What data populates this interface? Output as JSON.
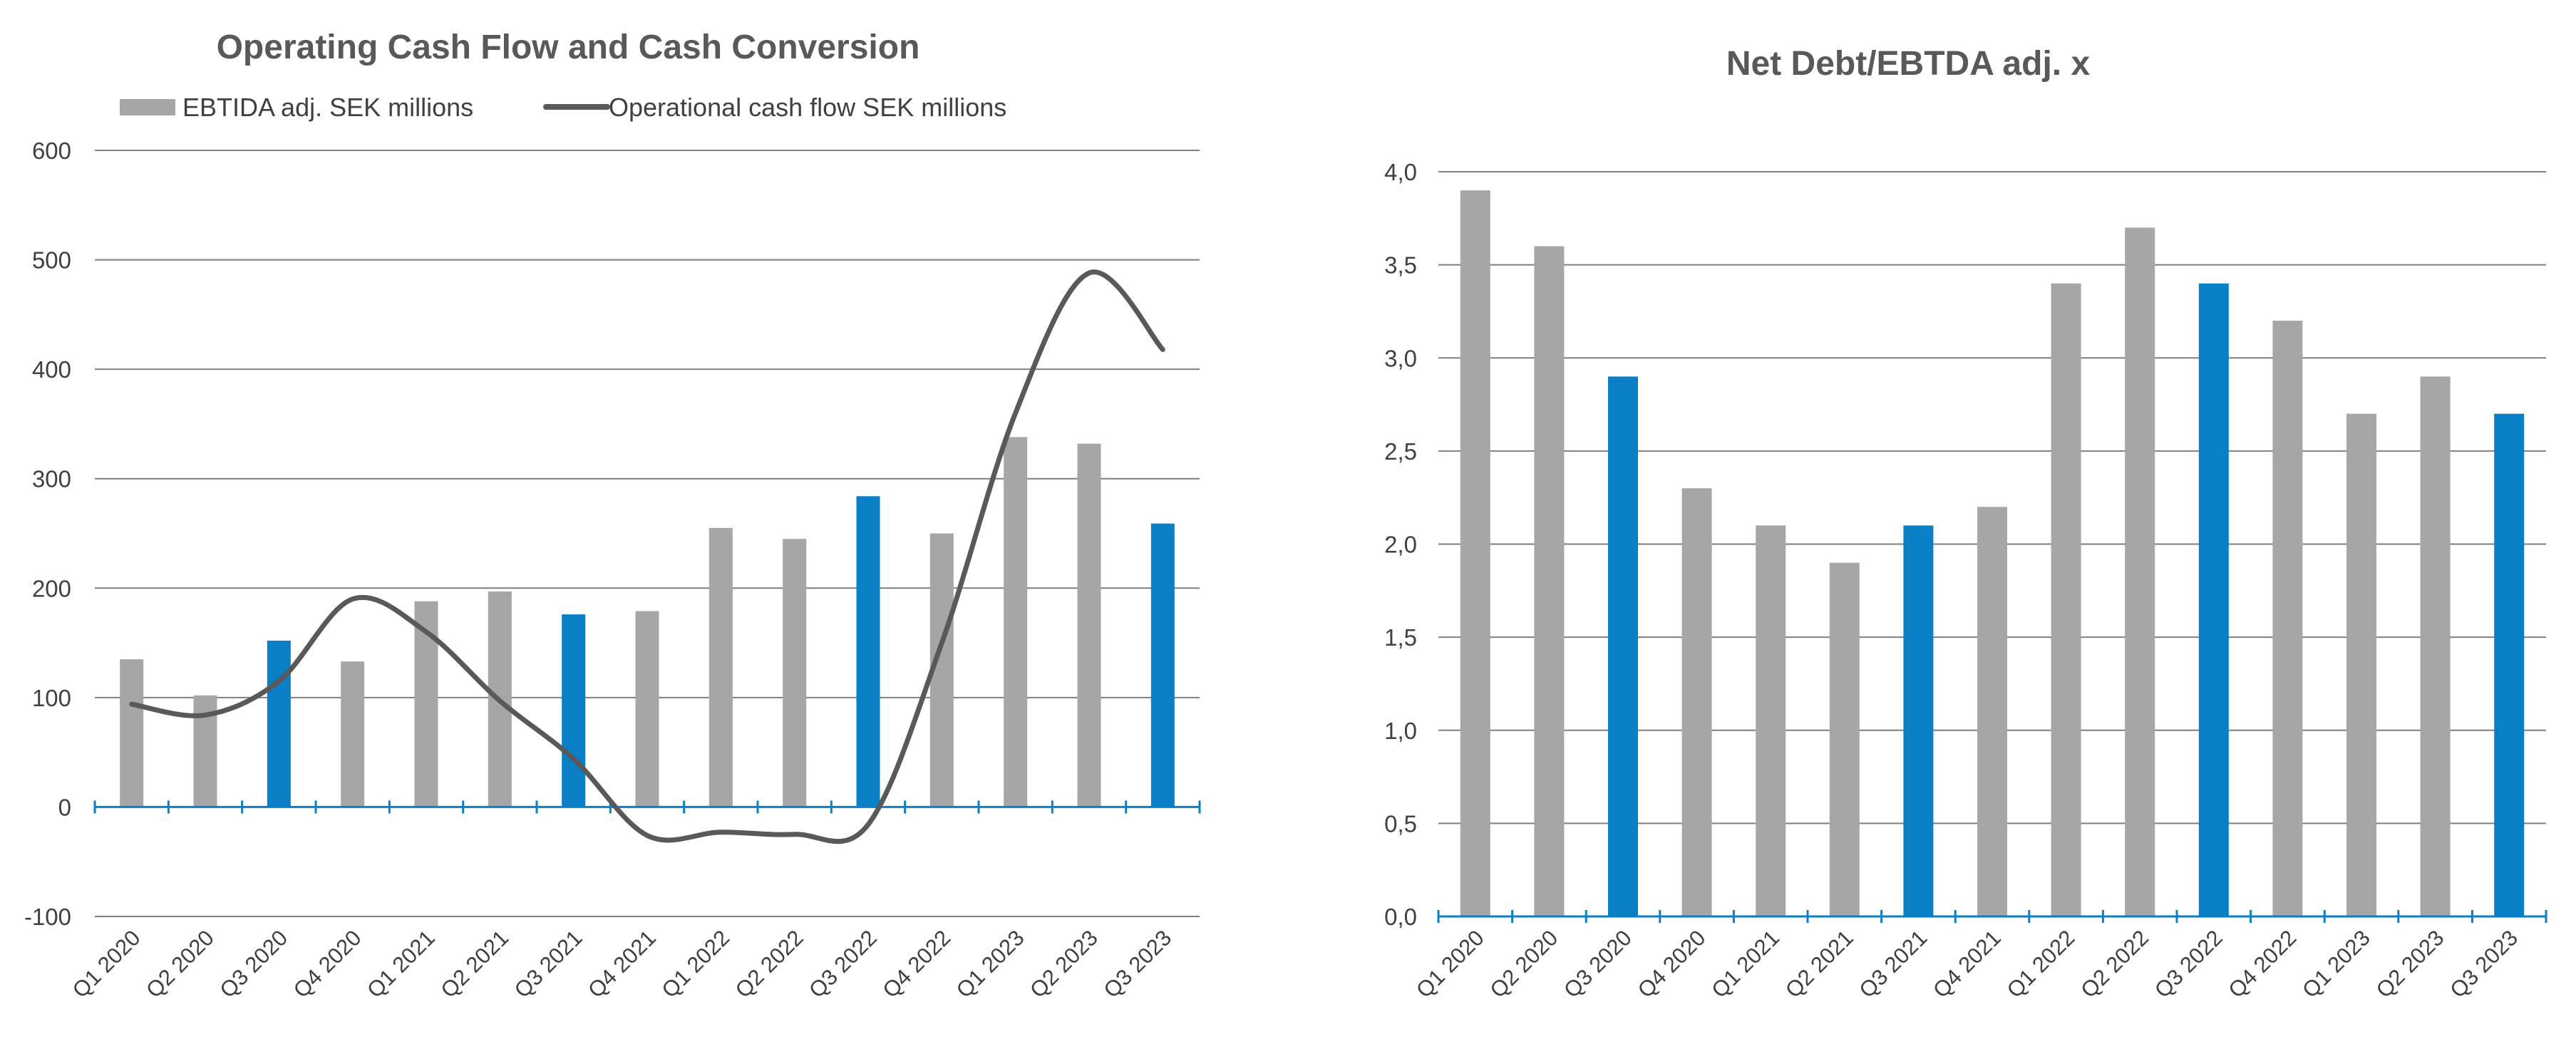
{
  "chart_data": [
    {
      "type": "bar+line",
      "title": "Operating Cash Flow and Cash Conversion",
      "categories": [
        "Q1 2020",
        "Q2 2020",
        "Q3 2020",
        "Q4 2020",
        "Q1 2021",
        "Q2 2021",
        "Q3 2021",
        "Q4 2021",
        "Q1 2022",
        "Q2 2022",
        "Q3 2022",
        "Q4 2022",
        "Q1 2023",
        "Q2 2023",
        "Q3 2023"
      ],
      "series": [
        {
          "name": "EBTIDA adj. SEK millions",
          "kind": "bar",
          "values": [
            135,
            102,
            152,
            133,
            188,
            197,
            176,
            179,
            255,
            245,
            284,
            250,
            338,
            332,
            259
          ]
        },
        {
          "name": "Operational cash flow SEK millions",
          "kind": "line",
          "values": [
            94,
            84,
            115,
            190,
            160,
            97,
            44,
            -26,
            -23,
            -25,
            -16,
            150,
            360,
            488,
            418
          ]
        }
      ],
      "highlight_indices": [
        2,
        6,
        10,
        14
      ],
      "colors": {
        "bar": "#a6a6a6",
        "highlight": "#0a7fc6",
        "line": "#595959",
        "axis": "#0a7fc6",
        "grid": "#7f7f7f"
      },
      "yticks": [
        "600",
        "500",
        "400",
        "300",
        "200",
        "100",
        "0",
        "-100"
      ],
      "ylim": [
        -100,
        600
      ],
      "grid": true,
      "legend_position": "top"
    },
    {
      "type": "bar",
      "title": "Net Debt/EBTDA adj. x",
      "categories": [
        "Q1 2020",
        "Q2 2020",
        "Q3 2020",
        "Q4 2020",
        "Q1 2021",
        "Q2 2021",
        "Q3 2021",
        "Q4 2021",
        "Q1 2022",
        "Q2 2022",
        "Q3 2022",
        "Q4 2022",
        "Q1 2023",
        "Q2 2023",
        "Q3 2023"
      ],
      "values": [
        3.9,
        3.6,
        2.9,
        2.3,
        2.1,
        1.9,
        2.1,
        2.2,
        3.4,
        3.7,
        3.4,
        3.2,
        2.7,
        2.9,
        2.7
      ],
      "highlight_indices": [
        2,
        6,
        10,
        14
      ],
      "colors": {
        "bar": "#a6a6a6",
        "highlight": "#0a7fc6",
        "axis": "#0a7fc6",
        "grid": "#7f7f7f"
      },
      "yticks": [
        "4,0",
        "3,5",
        "3,0",
        "2,5",
        "2,0",
        "1,5",
        "1,0",
        "0,5",
        "0,0"
      ],
      "ylim": [
        0,
        4
      ],
      "grid": true
    }
  ]
}
